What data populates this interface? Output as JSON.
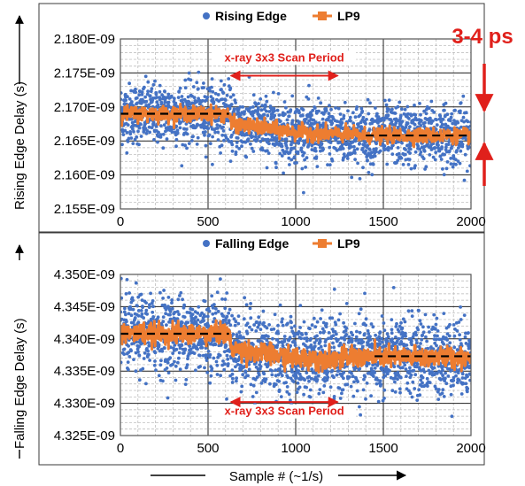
{
  "figure": {
    "x_axis_caption": "Sample # (~1/s)",
    "side_annotation": "3-4 ps"
  },
  "colors": {
    "raw": "#4472c4",
    "filtered": "#ed7d31",
    "annotation": "#e0201b",
    "mean_line": "#000000"
  },
  "chart_data": [
    {
      "type": "scatter",
      "ylabel": "Rising Edge Delay (s)",
      "xlim": [
        0,
        2000
      ],
      "ylim": [
        2.155e-09,
        2.18e-09
      ],
      "x_ticks": [
        0,
        500,
        1000,
        1500,
        2000
      ],
      "x_tick_labels": [
        "0",
        "500",
        "1000",
        "1500",
        "2000"
      ],
      "y_ticks": [
        2.155e-09,
        2.16e-09,
        2.165e-09,
        2.17e-09,
        2.175e-09,
        2.18e-09
      ],
      "y_tick_labels": [
        "2.155E-09",
        "2.160E-09",
        "2.165E-09",
        "2.170E-09",
        "2.175E-09",
        "2.180E-09"
      ],
      "legend_placement": "top-center",
      "grid": true,
      "series": [
        {
          "name": "Rising Edge",
          "kind": "scatter",
          "noise_sd": 2.2e-12,
          "mean_profile": [
            [
              0,
              2.169e-09
            ],
            [
              620,
              2.169e-09
            ],
            [
              630,
              2.1675e-09
            ],
            [
              800,
              2.167e-09
            ],
            [
              1000,
              2.1663e-09
            ],
            [
              1250,
              2.166e-09
            ],
            [
              1400,
              2.1658e-09
            ],
            [
              2000,
              2.1658e-09
            ]
          ]
        },
        {
          "name": "LP9",
          "kind": "line",
          "noise_sd": 5.5e-13,
          "mean_profile": [
            [
              0,
              2.169e-09
            ],
            [
              620,
              2.169e-09
            ],
            [
              630,
              2.1675e-09
            ],
            [
              800,
              2.167e-09
            ],
            [
              1000,
              2.1663e-09
            ],
            [
              1250,
              2.166e-09
            ],
            [
              1400,
              2.1658e-09
            ],
            [
              2000,
              2.1658e-09
            ]
          ]
        }
      ],
      "mean_lines": [
        {
          "x_range": [
            0,
            620
          ],
          "y": 2.169e-09
        },
        {
          "x_range": [
            1400,
            2000
          ],
          "y": 2.1658e-09
        }
      ],
      "annotations": [
        {
          "text": "x-ray 3x3 Scan Period",
          "x_range": [
            620,
            1250
          ],
          "label_y": 2.1767e-09,
          "arrow_y": 2.1746e-09
        }
      ]
    },
    {
      "type": "scatter",
      "ylabel": "Falling Edge Delay (s)",
      "xlim": [
        0,
        2000
      ],
      "ylim": [
        4.325e-09,
        4.35e-09
      ],
      "x_ticks": [
        0,
        500,
        1000,
        1500,
        2000
      ],
      "x_tick_labels": [
        "0",
        "500",
        "1000",
        "1500",
        "2000"
      ],
      "y_ticks": [
        4.325e-09,
        4.33e-09,
        4.335e-09,
        4.34e-09,
        4.345e-09,
        4.35e-09
      ],
      "y_tick_labels": [
        "4.325E-09",
        "4.330E-09",
        "4.335E-09",
        "4.340E-09",
        "4.345E-09",
        "4.350E-09"
      ],
      "legend_placement": "top-center",
      "grid": true,
      "series": [
        {
          "name": "Falling Edge",
          "kind": "scatter",
          "noise_sd": 3e-12,
          "mean_profile": [
            [
              0,
              4.3408e-09
            ],
            [
              620,
              4.3408e-09
            ],
            [
              630,
              4.3385e-09
            ],
            [
              1000,
              4.337e-09
            ],
            [
              1250,
              4.337e-09
            ],
            [
              1450,
              4.3372e-09
            ],
            [
              2000,
              4.3372e-09
            ]
          ]
        },
        {
          "name": "LP9",
          "kind": "line",
          "noise_sd": 8e-13,
          "mean_profile": [
            [
              0,
              4.3408e-09
            ],
            [
              620,
              4.3408e-09
            ],
            [
              630,
              4.3385e-09
            ],
            [
              1000,
              4.337e-09
            ],
            [
              1250,
              4.337e-09
            ],
            [
              1450,
              4.3372e-09
            ],
            [
              2000,
              4.3372e-09
            ]
          ]
        }
      ],
      "mean_lines": [
        {
          "x_range": [
            0,
            620
          ],
          "y": 4.3408e-09
        },
        {
          "x_range": [
            1450,
            2000
          ],
          "y": 4.3373e-09
        }
      ],
      "annotations": [
        {
          "text": "x-ray 3x3 Scan Period",
          "x_range": [
            620,
            1250
          ],
          "label_y": 4.3282e-09,
          "arrow_y": 4.3302e-09
        }
      ]
    }
  ]
}
